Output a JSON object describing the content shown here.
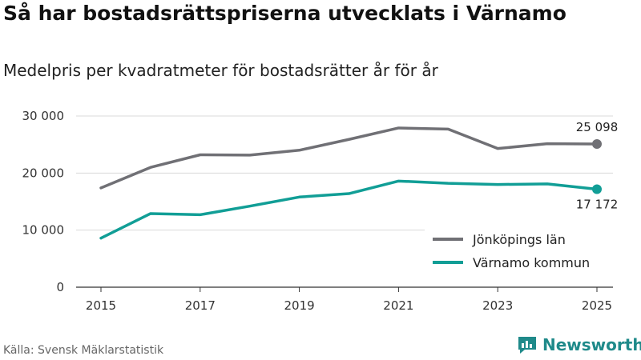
{
  "chart_data": {
    "type": "line",
    "title": "Så har bostadsrättspriserna utvecklats i Värnamo",
    "subtitle": "Medelpris per kvadratmeter för bostadsrätter år för år",
    "x": [
      2015,
      2016,
      2017,
      2018,
      2019,
      2020,
      2021,
      2022,
      2023,
      2024,
      2025
    ],
    "x_ticks": [
      "2015",
      "2017",
      "2019",
      "2021",
      "2023",
      "2025"
    ],
    "y_ticks": [
      "0",
      "10 000",
      "20 000",
      "30 000"
    ],
    "ylim": [
      0,
      30000
    ],
    "series": [
      {
        "name": "Jönköpings län",
        "color": "#707075",
        "values": [
          17400,
          21000,
          23200,
          23150,
          24000,
          25900,
          27900,
          27700,
          24300,
          25150,
          25098
        ],
        "end_label": "25 098"
      },
      {
        "name": "Värnamo kommun",
        "color": "#119e96",
        "values": [
          8600,
          12900,
          12700,
          14200,
          15800,
          16400,
          18600,
          18200,
          18000,
          18100,
          17172
        ],
        "end_label": "17 172"
      }
    ],
    "legend_position": "bottom-right"
  },
  "source": "Källa: Svensk Mäklarstatistik",
  "brand": "Newsworthy"
}
